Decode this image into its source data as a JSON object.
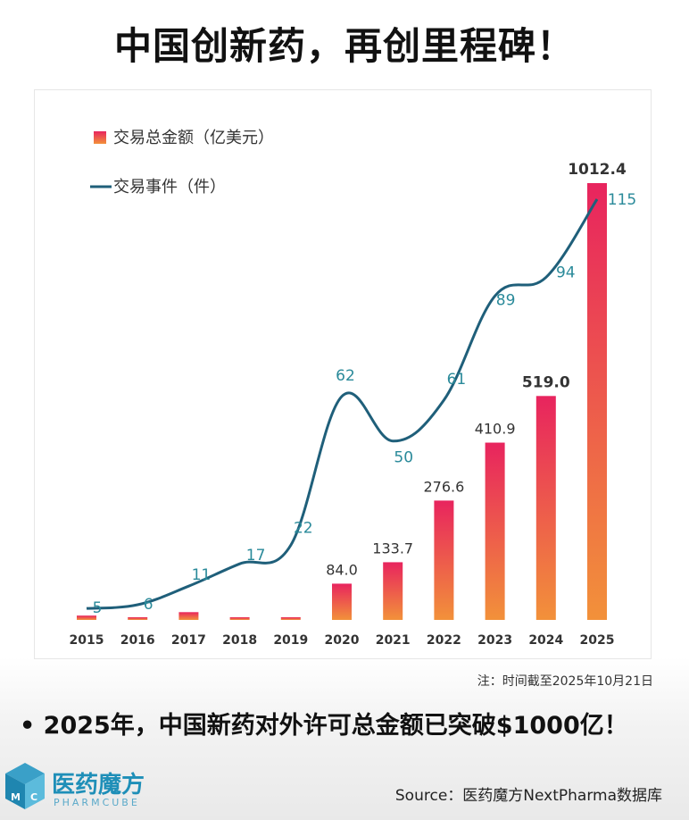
{
  "title": "中国创新药，再创里程碑！",
  "note": "注：时间截至2025年10月21日",
  "headline": "• 2025年，中国新药对外许可总金额已突破$1000亿！",
  "logo": {
    "name": "医药魔方",
    "sub": "PHARMCUBE",
    "icon": "pharmcube-cube-logo"
  },
  "source": "Source：医药魔方NextPharma数据库",
  "colors": {
    "bar_top": "#e8245e",
    "bar_bottom": "#f2913a",
    "line": "#1f5f7a",
    "line_label": "#2a8a9a"
  },
  "chart_data": {
    "type": "bar",
    "categories": [
      "2015",
      "2016",
      "2017",
      "2018",
      "2019",
      "2020",
      "2021",
      "2022",
      "2023",
      "2024",
      "2025"
    ],
    "series": [
      {
        "name": "交易总金额（亿美元）",
        "type": "bar",
        "values": [
          10,
          1.5,
          18,
          4.5,
          4,
          84.0,
          133.7,
          276.6,
          410.9,
          519.0,
          1012.4
        ],
        "labels": [
          "",
          "",
          "",
          "",
          "",
          "84.0",
          "133.7",
          "276.6",
          "410.9",
          "519.0",
          "1012.4"
        ]
      },
      {
        "name": "交易事件（件）",
        "type": "line",
        "values": [
          5,
          6,
          11,
          17,
          22,
          62,
          50,
          61,
          89,
          94,
          115
        ],
        "labels": [
          "5",
          "6",
          "11",
          "17",
          "22",
          "62",
          "50",
          "61",
          "89",
          "94",
          "115"
        ]
      }
    ],
    "legend_position": "top-left",
    "grid": false
  }
}
